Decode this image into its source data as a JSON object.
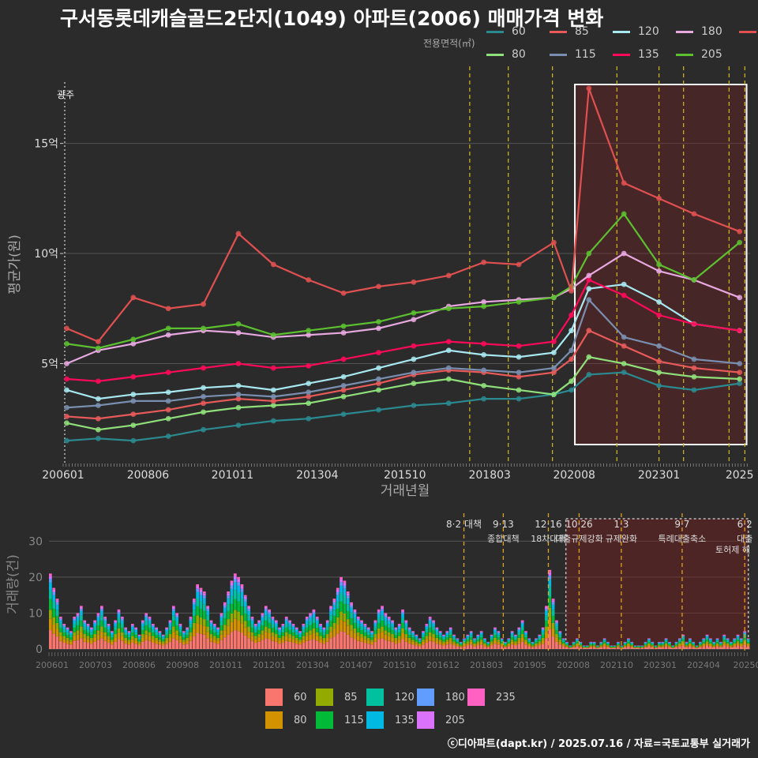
{
  "title": "구서동롯데캐슬골드2단지(1049) 아파트(2006) 매매가격 변화",
  "legend_title": "전용면적(㎡)",
  "credit": "ⓒ디아파트(dapt.kr) / 2025.07.16 / 자료=국토교통부 실거래가",
  "colors": {
    "60": "#2a8a8f",
    "80": "#8fe07a",
    "85": "#e85a5a",
    "115": "#7a8fb0",
    "120": "#a8e8f0",
    "135": "#ff0a5a",
    "180": "#e8a8e0",
    "205": "#5cc030",
    "235": "#e05050"
  },
  "bar_colors": {
    "60": "#f8766d",
    "80": "#d39200",
    "85": "#93aa00",
    "115": "#00ba38",
    "120": "#00c19f",
    "135": "#00b9e3",
    "180": "#619cff",
    "205": "#db72fb",
    "235": "#ff61c3"
  },
  "legend_top_order": [
    "60",
    "85",
    "120",
    "180",
    "235",
    "80",
    "115",
    "135",
    "205"
  ],
  "legend_bottom_order": [
    "60",
    "85",
    "120",
    "180",
    "235",
    "80",
    "115",
    "135",
    "205"
  ],
  "chart_data": [
    {
      "type": "line",
      "title": "구서동롯데캐슬골드2단지(1049) 아파트(2006) 매매가격 변화",
      "xlabel": "거래년월",
      "ylabel": "평균가(원)",
      "x_ticks": [
        "200601",
        "200806",
        "201011",
        "201304",
        "201510",
        "201803",
        "202008",
        "202301",
        "2025"
      ],
      "y_ticks": [
        "5억",
        "10억",
        "15억"
      ],
      "y_tick_values": [
        5,
        10,
        15
      ],
      "ylim": [
        0.5,
        18.5
      ],
      "xlim": [
        2006.0,
        2025.6
      ],
      "unit": "억원",
      "annotation_left": "광주",
      "highlight_region": {
        "from": 2020.6,
        "to": 2025.5
      },
      "policy_lines": [
        2017.6,
        2018.7,
        2019.96,
        2021.8,
        2023.0,
        2023.7,
        2025.0,
        2025.45
      ],
      "series": [
        {
          "name": "60",
          "x": [
            2006.1,
            2007,
            2008,
            2009,
            2010,
            2011,
            2012,
            2013,
            2014,
            2015,
            2016,
            2017,
            2018,
            2019,
            2020,
            2020.5,
            2021,
            2022,
            2023,
            2024,
            2025.3
          ],
          "y": [
            1.5,
            1.6,
            1.5,
            1.7,
            2.0,
            2.2,
            2.4,
            2.5,
            2.7,
            2.9,
            3.1,
            3.2,
            3.4,
            3.4,
            3.6,
            3.8,
            4.5,
            4.6,
            4.0,
            3.8,
            4.1
          ]
        },
        {
          "name": "80",
          "x": [
            2006.1,
            2007,
            2008,
            2009,
            2010,
            2011,
            2012,
            2013,
            2014,
            2015,
            2016,
            2017,
            2018,
            2019,
            2020,
            2020.5,
            2021,
            2022,
            2023,
            2024,
            2025.3
          ],
          "y": [
            2.3,
            2.0,
            2.2,
            2.5,
            2.8,
            3.0,
            3.1,
            3.2,
            3.5,
            3.8,
            4.1,
            4.3,
            4.0,
            3.8,
            3.6,
            4.2,
            5.3,
            5.0,
            4.6,
            4.4,
            4.3
          ]
        },
        {
          "name": "85",
          "x": [
            2006.1,
            2007,
            2008,
            2009,
            2010,
            2011,
            2012,
            2013,
            2014,
            2015,
            2016,
            2017,
            2018,
            2019,
            2020,
            2020.5,
            2021,
            2022,
            2023,
            2024,
            2025.3
          ],
          "y": [
            2.6,
            2.5,
            2.7,
            2.9,
            3.2,
            3.4,
            3.3,
            3.5,
            3.8,
            4.1,
            4.5,
            4.7,
            4.6,
            4.4,
            4.6,
            5.2,
            6.5,
            5.8,
            5.1,
            4.8,
            4.6
          ]
        },
        {
          "name": "115",
          "x": [
            2006.1,
            2007,
            2008,
            2009,
            2010,
            2011,
            2012,
            2013,
            2014,
            2015,
            2016,
            2017,
            2018,
            2019,
            2020,
            2020.5,
            2021,
            2022,
            2023,
            2024,
            2025.3
          ],
          "y": [
            3.0,
            3.1,
            3.3,
            3.3,
            3.5,
            3.6,
            3.5,
            3.7,
            4.0,
            4.3,
            4.6,
            4.8,
            4.7,
            4.6,
            4.8,
            5.6,
            7.9,
            6.2,
            5.8,
            5.2,
            5.0
          ]
        },
        {
          "name": "120",
          "x": [
            2006.1,
            2007,
            2008,
            2009,
            2010,
            2011,
            2012,
            2013,
            2014,
            2015,
            2016,
            2017,
            2018,
            2019,
            2020,
            2020.5,
            2021,
            2022,
            2023,
            2024,
            2025.3
          ],
          "y": [
            3.8,
            3.4,
            3.6,
            3.7,
            3.9,
            4.0,
            3.8,
            4.1,
            4.4,
            4.8,
            5.2,
            5.6,
            5.4,
            5.3,
            5.5,
            6.5,
            8.4,
            8.6,
            7.8,
            6.8,
            6.5
          ]
        },
        {
          "name": "135",
          "x": [
            2006.1,
            2007,
            2008,
            2009,
            2010,
            2011,
            2012,
            2013,
            2014,
            2015,
            2016,
            2017,
            2018,
            2019,
            2020,
            2020.5,
            2021,
            2022,
            2023,
            2024,
            2025.3
          ],
          "y": [
            4.3,
            4.2,
            4.4,
            4.6,
            4.8,
            5.0,
            4.8,
            4.9,
            5.2,
            5.5,
            5.8,
            6.0,
            5.9,
            5.8,
            6.0,
            7.2,
            8.8,
            8.1,
            7.2,
            6.8,
            6.5
          ]
        },
        {
          "name": "180",
          "x": [
            2006.1,
            2007,
            2008,
            2009,
            2010,
            2011,
            2012,
            2013,
            2014,
            2015,
            2016,
            2017,
            2018,
            2019,
            2020,
            2020.5,
            2021,
            2022,
            2023,
            2024,
            2025.3
          ],
          "y": [
            5.0,
            5.6,
            5.9,
            6.3,
            6.5,
            6.4,
            6.2,
            6.3,
            6.4,
            6.6,
            7.0,
            7.6,
            7.8,
            7.9,
            8.0,
            8.4,
            9.0,
            10.0,
            9.2,
            8.8,
            8.0
          ]
        },
        {
          "name": "205",
          "x": [
            2006.1,
            2007,
            2008,
            2009,
            2010,
            2011,
            2012,
            2013,
            2014,
            2015,
            2016,
            2017,
            2018,
            2019,
            2020,
            2020.5,
            2021,
            2022,
            2023,
            2024,
            2025.3
          ],
          "y": [
            5.9,
            5.7,
            6.1,
            6.6,
            6.6,
            6.8,
            6.3,
            6.5,
            6.7,
            6.9,
            7.3,
            7.5,
            7.6,
            7.8,
            8.0,
            8.5,
            10.0,
            11.8,
            9.5,
            8.8,
            10.5
          ]
        },
        {
          "name": "235",
          "x": [
            2006.1,
            2007,
            2008,
            2009,
            2010,
            2011,
            2012,
            2013,
            2014,
            2015,
            2016,
            2017,
            2018,
            2019,
            2020,
            2020.5,
            2021,
            2022,
            2023,
            2024,
            2025.3
          ],
          "y": [
            6.6,
            6.0,
            8.0,
            7.5,
            7.7,
            10.9,
            9.5,
            8.8,
            8.2,
            8.5,
            8.7,
            9.0,
            9.6,
            9.5,
            10.5,
            8.3,
            17.5,
            13.2,
            12.5,
            11.8,
            11.0
          ]
        }
      ]
    },
    {
      "type": "bar",
      "ylabel": "거래량(건)",
      "y_ticks": [
        "0",
        "10",
        "20",
        "30"
      ],
      "y_tick_values": [
        0,
        10,
        20,
        30
      ],
      "ylim": [
        0,
        36
      ],
      "x_ticks": [
        "200601",
        "200703",
        "200806",
        "200908",
        "201011",
        "201201",
        "201304",
        "201407",
        "201510",
        "201612",
        "201803",
        "201905",
        "202008",
        "202110",
        "202301",
        "202404",
        "20250"
      ],
      "policy_annotations": [
        {
          "x": 2017.6,
          "label": "8·2 대책",
          "sub": ""
        },
        {
          "x": 2018.7,
          "label": "9·13",
          "sub": "종합대책"
        },
        {
          "x": 2019.96,
          "label": "12·16",
          "sub": "18차대책"
        },
        {
          "x": 2020.82,
          "label": "10·26",
          "sub": "대출규제강화"
        },
        {
          "x": 2022.0,
          "label": "1·3",
          "sub": "규제완화"
        },
        {
          "x": 2023.7,
          "label": "9·7",
          "sub": "특례대출축소"
        },
        {
          "x": 2025.45,
          "label": "6·2",
          "sub": "대출"
        }
      ],
      "extra_note": "토허제 해",
      "monthly_totals": [
        21,
        17,
        14,
        9,
        7,
        6,
        5,
        9,
        10,
        12,
        8,
        7,
        6,
        8,
        10,
        12,
        9,
        7,
        5,
        8,
        11,
        9,
        6,
        5,
        7,
        6,
        4,
        8,
        10,
        9,
        7,
        6,
        5,
        4,
        6,
        8,
        12,
        10,
        7,
        5,
        6,
        9,
        14,
        18,
        17,
        16,
        12,
        8,
        7,
        6,
        10,
        13,
        16,
        19,
        21,
        20,
        18,
        15,
        12,
        9,
        7,
        8,
        10,
        12,
        11,
        9,
        8,
        6,
        7,
        9,
        8,
        7,
        6,
        5,
        7,
        9,
        10,
        11,
        9,
        7,
        6,
        8,
        12,
        14,
        17,
        20,
        19,
        16,
        13,
        11,
        9,
        8,
        7,
        6,
        5,
        8,
        11,
        12,
        10,
        9,
        8,
        6,
        7,
        11,
        8,
        6,
        5,
        4,
        3,
        5,
        7,
        9,
        8,
        6,
        5,
        4,
        5,
        6,
        4,
        3,
        2,
        3,
        4,
        5,
        3,
        4,
        5,
        3,
        2,
        4,
        6,
        5,
        3,
        2,
        3,
        5,
        4,
        6,
        8,
        5,
        3,
        2,
        3,
        4,
        6,
        12,
        22,
        14,
        8,
        5,
        3,
        2,
        1,
        2,
        3,
        2,
        1,
        1,
        2,
        2,
        1,
        2,
        3,
        2,
        1,
        1,
        2,
        1,
        2,
        3,
        2,
        1,
        1,
        1,
        2,
        3,
        2,
        1,
        2,
        2,
        3,
        2,
        1,
        2,
        3,
        4,
        2,
        3,
        2,
        1,
        2,
        3,
        4,
        3,
        2,
        3,
        2,
        4,
        3,
        2,
        3,
        4,
        3,
        5,
        3
      ]
    }
  ]
}
